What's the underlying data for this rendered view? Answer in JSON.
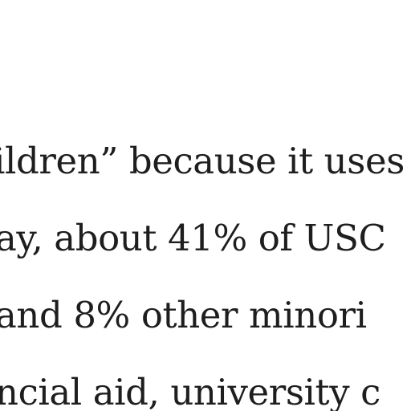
{
  "article": {
    "lines": [
      "ildren” because it uses",
      "ay, about 41% of USC",
      "and 8% other minori",
      "ncial aid, university c"
    ]
  }
}
